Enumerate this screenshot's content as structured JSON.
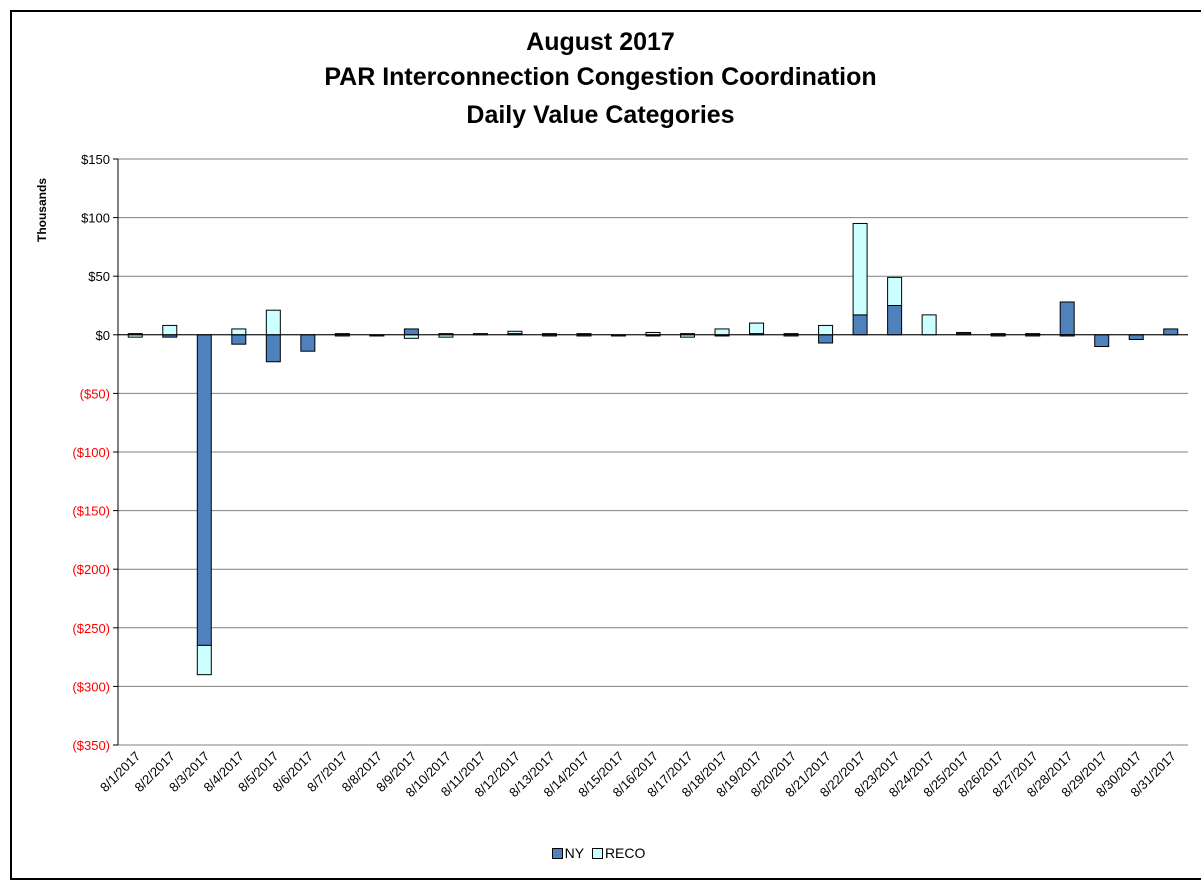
{
  "colors": {
    "ny": "#4f81bd",
    "reco": "#ccffff",
    "negative_tick": "#ff0000",
    "positive_tick": "#000000",
    "grid": "#808080"
  },
  "chart_data": {
    "type": "bar",
    "stacked": true,
    "title": [
      "August 2017",
      "PAR Interconnection Congestion Coordination",
      "Daily Value Categories"
    ],
    "ylabel": "Thousands",
    "xlabel": "",
    "ylim": [
      -350,
      150
    ],
    "ytick_values": [
      150,
      100,
      50,
      0,
      -50,
      -100,
      -150,
      -200,
      -250,
      -300,
      -350
    ],
    "ytick_labels": [
      "$150",
      "$100",
      "$50",
      "$0",
      "($50)",
      "($100)",
      "($150)",
      "($200)",
      "($250)",
      "($300)",
      "($350)"
    ],
    "grid": "horizontal",
    "legend_position": "bottom",
    "categories": [
      "8/1/2017",
      "8/2/2017",
      "8/3/2017",
      "8/4/2017",
      "8/5/2017",
      "8/6/2017",
      "8/7/2017",
      "8/8/2017",
      "8/9/2017",
      "8/10/2017",
      "8/11/2017",
      "8/12/2017",
      "8/13/2017",
      "8/14/2017",
      "8/15/2017",
      "8/16/2017",
      "8/17/2017",
      "8/18/2017",
      "8/19/2017",
      "8/20/2017",
      "8/21/2017",
      "8/22/2017",
      "8/23/2017",
      "8/24/2017",
      "8/25/2017",
      "8/26/2017",
      "8/27/2017",
      "8/28/2017",
      "8/29/2017",
      "8/30/2017",
      "8/31/2017"
    ],
    "series": [
      {
        "name": "NY",
        "values": [
          1,
          -2,
          -265,
          -8,
          -23,
          -14,
          1,
          -1,
          5,
          1,
          1,
          1,
          1,
          1,
          -1,
          -1,
          1,
          -1,
          1,
          1,
          -7,
          17,
          25,
          0,
          1,
          1,
          1,
          28,
          -10,
          -4,
          5
        ]
      },
      {
        "name": "RECO",
        "values": [
          -2,
          8,
          -25,
          5,
          21,
          0,
          -1,
          0,
          -3,
          -2,
          0,
          2,
          -1,
          -1,
          0,
          2,
          -2,
          5,
          9,
          -1,
          8,
          78,
          24,
          17,
          1,
          -1,
          -1,
          -1,
          0,
          0,
          0
        ]
      }
    ]
  }
}
